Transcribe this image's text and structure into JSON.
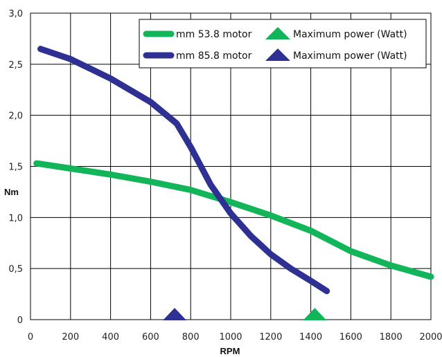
{
  "chart_data": {
    "type": "line",
    "xlabel": "RPM",
    "ylabel": "Nm",
    "xlim": [
      0,
      2000
    ],
    "ylim": [
      0,
      3.0
    ],
    "x_ticks": [
      "0",
      "200",
      "400",
      "600",
      "800",
      "1000",
      "1200",
      "1400",
      "1600",
      "1800",
      "2000"
    ],
    "y_ticks": [
      "0",
      "0,5",
      "1,0",
      "1,5",
      "2,0",
      "2,5",
      "3,0"
    ],
    "grid": true,
    "legend_position": "top-right",
    "series": [
      {
        "name": "mm 53.8 motor",
        "color": "#13b55a",
        "points": [
          [
            30,
            1.53
          ],
          [
            200,
            1.48
          ],
          [
            400,
            1.42
          ],
          [
            600,
            1.35
          ],
          [
            800,
            1.27
          ],
          [
            1000,
            1.15
          ],
          [
            1200,
            1.02
          ],
          [
            1400,
            0.87
          ],
          [
            1500,
            0.77
          ],
          [
            1600,
            0.67
          ],
          [
            1800,
            0.53
          ],
          [
            2000,
            0.42
          ]
        ],
        "marker_label": "Maximum power (Watt)",
        "max_power_rpm": 1420
      },
      {
        "name": "mm 85.8 motor",
        "color": "#2e3192",
        "points": [
          [
            50,
            2.65
          ],
          [
            200,
            2.55
          ],
          [
            400,
            2.36
          ],
          [
            600,
            2.13
          ],
          [
            730,
            1.92
          ],
          [
            800,
            1.69
          ],
          [
            900,
            1.32
          ],
          [
            1000,
            1.04
          ],
          [
            1100,
            0.82
          ],
          [
            1200,
            0.64
          ],
          [
            1300,
            0.5
          ],
          [
            1400,
            0.38
          ],
          [
            1480,
            0.28
          ]
        ],
        "marker_label": "Maximum power (Watt)",
        "max_power_rpm": 720
      }
    ]
  }
}
